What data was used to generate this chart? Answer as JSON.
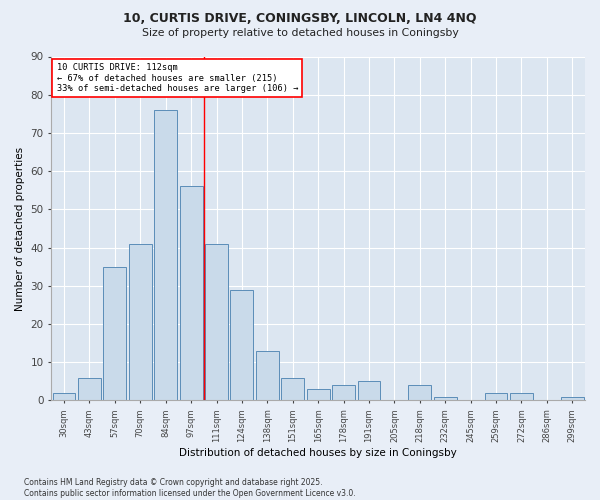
{
  "title_line1": "10, CURTIS DRIVE, CONINGSBY, LINCOLN, LN4 4NQ",
  "title_line2": "Size of property relative to detached houses in Coningsby",
  "xlabel": "Distribution of detached houses by size in Coningsby",
  "ylabel": "Number of detached properties",
  "categories": [
    "30sqm",
    "43sqm",
    "57sqm",
    "70sqm",
    "84sqm",
    "97sqm",
    "111sqm",
    "124sqm",
    "138sqm",
    "151sqm",
    "165sqm",
    "178sqm",
    "191sqm",
    "205sqm",
    "218sqm",
    "232sqm",
    "245sqm",
    "259sqm",
    "272sqm",
    "286sqm",
    "299sqm"
  ],
  "values": [
    2,
    6,
    35,
    41,
    76,
    56,
    41,
    29,
    13,
    6,
    3,
    4,
    5,
    0,
    4,
    1,
    0,
    2,
    2,
    0,
    1
  ],
  "bar_color": "#c9daea",
  "bar_edge_color": "#5b8db8",
  "vline_x_index": 6,
  "annotation_text": "10 CURTIS DRIVE: 112sqm\n← 67% of detached houses are smaller (215)\n33% of semi-detached houses are larger (106) →",
  "ylim": [
    0,
    90
  ],
  "yticks": [
    0,
    10,
    20,
    30,
    40,
    50,
    60,
    70,
    80,
    90
  ],
  "bg_color": "#dce6f1",
  "fig_bg_color": "#e8eef7",
  "grid_color": "#ffffff",
  "footer_line1": "Contains HM Land Registry data © Crown copyright and database right 2025.",
  "footer_line2": "Contains public sector information licensed under the Open Government Licence v3.0."
}
